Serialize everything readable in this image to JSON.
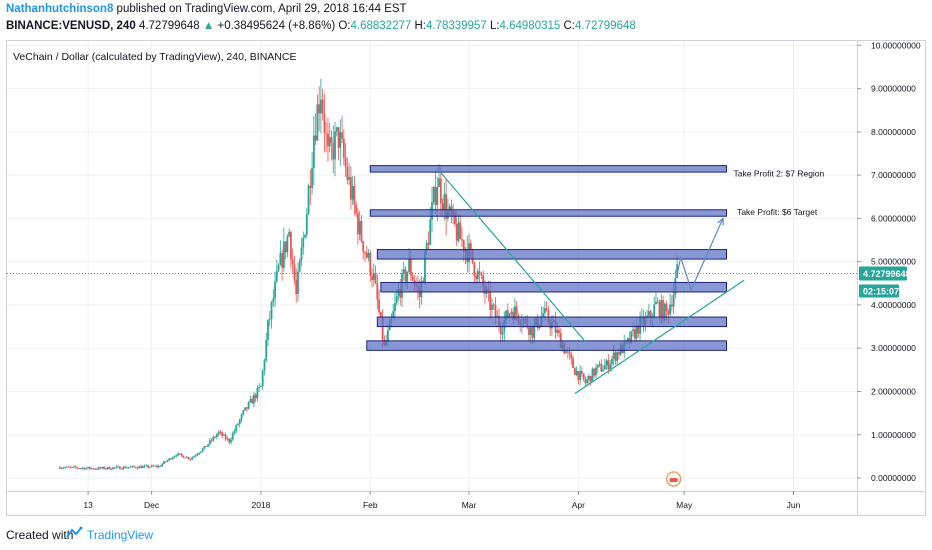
{
  "header": {
    "author": "Nathanhutchinson8",
    "published_text": "published on TradingView.com, April 29, 2018 16:44 EST",
    "symbol": "BINANCE:VENUSD, 240",
    "last": "4.72799648",
    "change": "+0.38495624 (+8.86%)",
    "o_label": "O:",
    "o_value": "4.68832277",
    "h_label": "H:",
    "h_value": "4.78339957",
    "l_label": "L:",
    "l_value": "4.64980315",
    "c_label": "C:",
    "c_value": "4.72799648"
  },
  "footer": {
    "created_with": "Created with",
    "brand": "TradingView"
  },
  "colors": {
    "up": "#26a69a",
    "down": "#ef5350",
    "zone_fill": "#5b6fc4",
    "zone_border": "#1a237e",
    "trendline": "#26a69a",
    "arrow": "#5b8ac4",
    "price_line": "#26a69a",
    "price_label": "#26a69a",
    "countdown_label": "#26a69a"
  },
  "chart_data": {
    "type": "candlestick",
    "title": "VeChain / Dollar (calculated by TradingView), 240, BINANCE",
    "ylim": [
      -0.3,
      10.1
    ],
    "y_ticks": [
      {
        "value": 10,
        "label": "10.00000000"
      },
      {
        "value": 9,
        "label": "9.00000000"
      },
      {
        "value": 8,
        "label": "8.00000000"
      },
      {
        "value": 7,
        "label": "7.00000000"
      },
      {
        "value": 6,
        "label": "6.00000000"
      },
      {
        "value": 5,
        "label": "5.00000000"
      },
      {
        "value": 4,
        "label": "4.00000000"
      },
      {
        "value": 3,
        "label": "3.00000000"
      },
      {
        "value": 2,
        "label": "2.00000000"
      },
      {
        "value": 1,
        "label": "1.00000000"
      },
      {
        "value": 0,
        "label": "0.00000000"
      }
    ],
    "x_ticks": [
      {
        "date": "2017-11-13",
        "label": "13"
      },
      {
        "date": "2017-12-01",
        "label": "Dec"
      },
      {
        "date": "2018-01-01",
        "label": "2018"
      },
      {
        "date": "2018-02-01",
        "label": "Feb"
      },
      {
        "date": "2018-03-01",
        "label": "Mar"
      },
      {
        "date": "2018-04-01",
        "label": "Apr"
      },
      {
        "date": "2018-05-01",
        "label": "May"
      },
      {
        "date": "2018-06-01",
        "label": "Jun"
      }
    ],
    "x_range": [
      "2017-10-21",
      "2018-06-19"
    ],
    "price_path": [
      [
        "2017-11-05",
        0.25
      ],
      [
        "2017-11-15",
        0.22
      ],
      [
        "2017-11-25",
        0.25
      ],
      [
        "2017-12-03",
        0.27
      ],
      [
        "2017-12-08",
        0.55
      ],
      [
        "2017-12-12",
        0.45
      ],
      [
        "2017-12-16",
        0.7
      ],
      [
        "2017-12-20",
        1.05
      ],
      [
        "2017-12-23",
        0.85
      ],
      [
        "2017-12-27",
        1.5
      ],
      [
        "2018-01-01",
        2.1
      ],
      [
        "2018-01-03",
        3.5
      ],
      [
        "2018-01-06",
        4.8
      ],
      [
        "2018-01-09",
        5.7
      ],
      [
        "2018-01-11",
        4.2
      ],
      [
        "2018-01-14",
        6.2
      ],
      [
        "2018-01-16",
        8.0
      ],
      [
        "2018-01-18",
        9.0
      ],
      [
        "2018-01-20",
        7.4
      ],
      [
        "2018-01-23",
        7.9
      ],
      [
        "2018-01-26",
        6.8
      ],
      [
        "2018-01-29",
        5.7
      ],
      [
        "2018-02-02",
        4.6
      ],
      [
        "2018-02-05",
        3.0
      ],
      [
        "2018-02-07",
        3.6
      ],
      [
        "2018-02-09",
        4.3
      ],
      [
        "2018-02-12",
        4.9
      ],
      [
        "2018-02-15",
        4.2
      ],
      [
        "2018-02-18",
        5.9
      ],
      [
        "2018-02-20",
        6.9
      ],
      [
        "2018-02-23",
        6.1
      ],
      [
        "2018-02-26",
        5.6
      ],
      [
        "2018-03-01",
        5.2
      ],
      [
        "2018-03-04",
        4.6
      ],
      [
        "2018-03-07",
        4.0
      ],
      [
        "2018-03-10",
        3.5
      ],
      [
        "2018-03-13",
        3.9
      ],
      [
        "2018-03-16",
        3.7
      ],
      [
        "2018-03-19",
        3.4
      ],
      [
        "2018-03-22",
        3.8
      ],
      [
        "2018-03-25",
        3.5
      ],
      [
        "2018-03-28",
        3.0
      ],
      [
        "2018-03-31",
        2.5
      ],
      [
        "2018-04-03",
        2.2
      ],
      [
        "2018-04-06",
        2.5
      ],
      [
        "2018-04-09",
        2.6
      ],
      [
        "2018-04-12",
        2.9
      ],
      [
        "2018-04-15",
        3.1
      ],
      [
        "2018-04-18",
        3.5
      ],
      [
        "2018-04-21",
        3.7
      ],
      [
        "2018-04-23",
        4.0
      ],
      [
        "2018-04-26",
        3.8
      ],
      [
        "2018-04-28",
        4.3
      ],
      [
        "2018-04-29",
        4.73
      ]
    ],
    "last_price": {
      "value": 4.72799648,
      "label": "4.72799648"
    },
    "countdown": "02:15:07",
    "zones": [
      {
        "name": "zone-7",
        "start": "2018-02-01",
        "end": "2018-05-13",
        "low": 7.07,
        "high": 7.22
      },
      {
        "name": "zone-6",
        "start": "2018-02-01",
        "end": "2018-05-13",
        "low": 6.05,
        "high": 6.2
      },
      {
        "name": "zone-5",
        "start": "2018-02-03",
        "end": "2018-05-13",
        "low": 5.06,
        "high": 5.28
      },
      {
        "name": "zone-4-4",
        "start": "2018-02-04",
        "end": "2018-05-13",
        "low": 4.3,
        "high": 4.52
      },
      {
        "name": "zone-3-6",
        "start": "2018-02-03",
        "end": "2018-05-13",
        "low": 3.5,
        "high": 3.72
      },
      {
        "name": "zone-3",
        "start": "2018-01-31",
        "end": "2018-05-13",
        "low": 2.95,
        "high": 3.17
      }
    ],
    "annotations": [
      {
        "text": "Take Profit 2: $7 Region",
        "date": "2018-05-15",
        "price": 6.97
      },
      {
        "text": "Take Profit: $6 Target",
        "date": "2018-05-16",
        "price": 6.08
      }
    ],
    "trendlines": [
      {
        "from": [
          "2018-02-20",
          7.15
        ],
        "to": [
          "2018-04-03",
          3.15
        ]
      },
      {
        "from": [
          "2018-03-31",
          1.95
        ],
        "to": [
          "2018-05-18",
          4.57
        ]
      }
    ],
    "projection_path": [
      [
        "2018-04-29",
        4.7
      ],
      [
        "2018-04-30",
        5.1
      ],
      [
        "2018-05-03",
        4.35
      ],
      [
        "2018-05-12",
        6.0
      ]
    ]
  }
}
